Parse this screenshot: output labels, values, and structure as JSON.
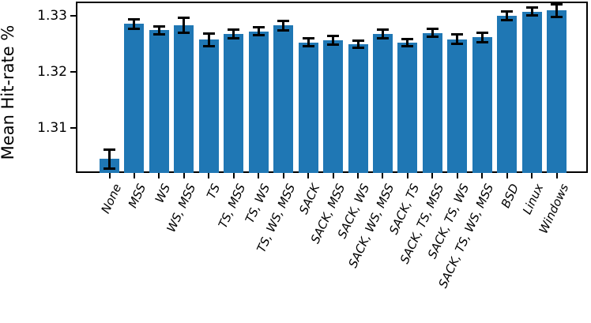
{
  "chart_data": {
    "type": "bar",
    "title": "",
    "xlabel": "",
    "ylabel": "Mean Hit-rate %",
    "categories": [
      "None",
      "MSS",
      "WS",
      "WS, MSS",
      "TS",
      "TS, MSS",
      "TS, WS",
      "TS, WS, MSS",
      "SACK",
      "SACK, MSS",
      "SACK, WS",
      "SACK, WS, MSS",
      "SACK, TS",
      "SACK, TS, MSS",
      "SACK, TS, WS",
      "SACK, TS, WS, MSS",
      "BSD",
      "Linux",
      "Windows"
    ],
    "values": [
      1.3045,
      1.3286,
      1.3275,
      1.3284,
      1.3258,
      1.3268,
      1.3273,
      1.3283,
      1.3253,
      1.3257,
      1.325,
      1.3268,
      1.3253,
      1.327,
      1.3259,
      1.3262,
      1.3301,
      1.3308,
      1.331
    ],
    "errors": [
      0.0017,
      0.0008,
      0.0007,
      0.0013,
      0.0011,
      0.0008,
      0.0007,
      0.0009,
      0.0007,
      0.0008,
      0.0006,
      0.0008,
      0.0006,
      0.0007,
      0.0009,
      0.0009,
      0.0008,
      0.0007,
      0.0011
    ],
    "ylim": [
      1.302,
      1.3326
    ],
    "yticks": [
      1.31,
      1.32,
      1.33
    ],
    "ytick_labels": [
      "1.31",
      "1.32",
      "1.33"
    ],
    "grid": false,
    "legend": null,
    "bar_color": "#1f77b4",
    "error_color": "#000000",
    "error_bars": true,
    "xtick_rotation_deg": 65
  }
}
